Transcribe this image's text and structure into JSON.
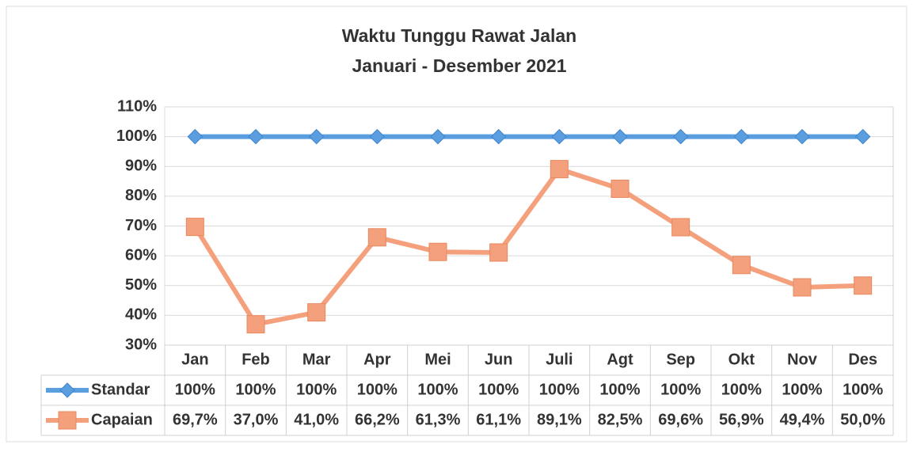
{
  "chart_data": {
    "type": "line",
    "title": "Waktu Tunggu Rawat Jalan",
    "subtitle": "Januari - Desember 2021",
    "categories": [
      "Jan",
      "Feb",
      "Mar",
      "Apr",
      "Mei",
      "Jun",
      "Juli",
      "Agt",
      "Sep",
      "Okt",
      "Nov",
      "Des"
    ],
    "series": [
      {
        "name": "Standar",
        "color": "#5a9ee0",
        "marker": "diamond",
        "values": [
          100,
          100,
          100,
          100,
          100,
          100,
          100,
          100,
          100,
          100,
          100,
          100
        ],
        "value_labels": [
          "100%",
          "100%",
          "100%",
          "100%",
          "100%",
          "100%",
          "100%",
          "100%",
          "100%",
          "100%",
          "100%",
          "100%"
        ]
      },
      {
        "name": "Capaian",
        "color": "#f5a07c",
        "marker": "square",
        "values": [
          69.7,
          37.0,
          41.0,
          66.2,
          61.3,
          61.1,
          89.1,
          82.5,
          69.6,
          56.9,
          49.4,
          50.0
        ],
        "value_labels": [
          "69,7%",
          "37,0%",
          "41,0%",
          "66,2%",
          "61,3%",
          "61,1%",
          "89,1%",
          "82,5%",
          "69,6%",
          "56,9%",
          "49,4%",
          "50,0%"
        ]
      }
    ],
    "ylim": [
      30,
      110
    ],
    "yticks": [
      {
        "value": 30,
        "label": "30%"
      },
      {
        "value": 40,
        "label": "40%"
      },
      {
        "value": 50,
        "label": "50%"
      },
      {
        "value": 60,
        "label": "60%"
      },
      {
        "value": 70,
        "label": "70%"
      },
      {
        "value": 80,
        "label": "80%"
      },
      {
        "value": 90,
        "label": "90%"
      },
      {
        "value": 100,
        "label": "100%"
      },
      {
        "value": 110,
        "label": "110%"
      }
    ],
    "grid": true
  }
}
